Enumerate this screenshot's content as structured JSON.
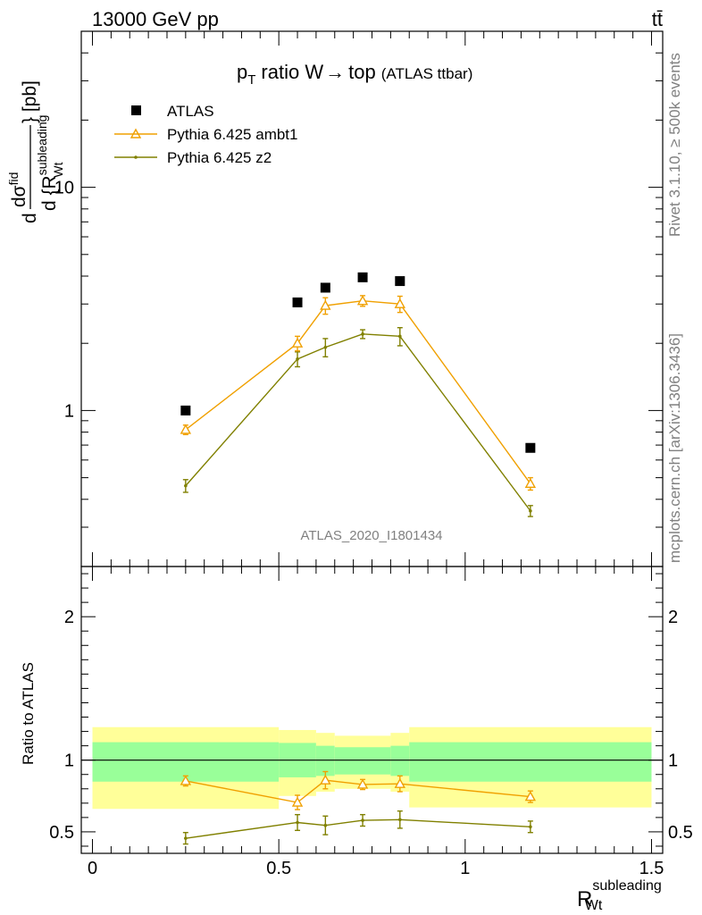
{
  "header": {
    "left": "13000 GeV pp",
    "right": "tt̄"
  },
  "side_labels": {
    "rivet": "Rivet 3.1.10, ≥ 500k events",
    "source": "mcplots.cern.ch [arXiv:1306.3436]"
  },
  "colors": {
    "atlas": "#000000",
    "ambt1": "#f0a000",
    "z2": "#808000",
    "band_inner": "#99ff99",
    "band_outer": "#ffff99"
  },
  "chart_data": [
    {
      "type": "scatter",
      "title": "p_T ratio W→ top",
      "title_main": "p",
      "title_sub": "T",
      "title_rest": "ratio W",
      "title_arrow": "→",
      "title_end": "top",
      "title_note": "(ATLAS ttbar)",
      "watermark": "ATLAS_2020_I1801434",
      "y_scale": "log",
      "ylim": [
        0.2,
        50
      ],
      "xlim": [
        -0.03,
        1.53
      ],
      "y_ticks": [
        1,
        10
      ],
      "y_tick_labels": [
        "1",
        "10"
      ],
      "ylabel_parts": {
        "d": "d",
        "sigma": "dσ",
        "sigma_sup": "fid",
        "denom": "d {R",
        "denom_sup": "subleading",
        "denom_sub": "Wt",
        "unit": "} [pb]"
      },
      "legend_position": "top-left",
      "series": [
        {
          "name": "ATLAS",
          "marker": "square",
          "x": [
            0.25,
            0.55,
            0.625,
            0.725,
            0.825,
            1.175
          ],
          "y": [
            1.0,
            3.05,
            3.55,
            3.95,
            3.8,
            0.68
          ]
        },
        {
          "name": "Pythia 6.425 ambt1",
          "marker": "triangle",
          "x": [
            0.25,
            0.55,
            0.625,
            0.725,
            0.825,
            1.175
          ],
          "y": [
            0.82,
            2.0,
            2.95,
            3.1,
            3.0,
            0.47
          ],
          "err": [
            0.04,
            0.15,
            0.25,
            0.17,
            0.25,
            0.03
          ]
        },
        {
          "name": "Pythia 6.425 z2",
          "marker": "dot",
          "x": [
            0.25,
            0.55,
            0.625,
            0.725,
            0.825,
            1.175
          ],
          "y": [
            0.46,
            1.7,
            1.92,
            2.2,
            2.15,
            0.355
          ],
          "err": [
            0.03,
            0.13,
            0.18,
            0.1,
            0.2,
            0.02
          ]
        }
      ]
    },
    {
      "type": "scatter",
      "ylabel": "Ratio to ATLAS",
      "xlabel_main": "R",
      "xlabel_sup": "subleading",
      "xlabel_sub": "Wt",
      "ylim": [
        0.35,
        2.35
      ],
      "xlim": [
        -0.03,
        1.53
      ],
      "y_ticks": [
        0.5,
        1,
        2
      ],
      "y_tick_labels": [
        "0.5",
        "1",
        "2"
      ],
      "x_ticks": [
        0,
        0.5,
        1,
        1.5
      ],
      "x_tick_labels": [
        "0",
        "0.5",
        "1",
        "1.5"
      ],
      "bins": [
        {
          "lo": 0.0,
          "hi": 0.5,
          "inner": [
            0.85,
            1.125
          ],
          "outer": [
            0.66,
            1.23
          ]
        },
        {
          "lo": 0.5,
          "hi": 0.6,
          "inner": [
            0.88,
            1.12
          ],
          "outer": [
            0.75,
            1.21
          ]
        },
        {
          "lo": 0.6,
          "hi": 0.65,
          "inner": [
            0.89,
            1.1
          ],
          "outer": [
            0.78,
            1.19
          ]
        },
        {
          "lo": 0.65,
          "hi": 0.8,
          "inner": [
            0.9,
            1.09
          ],
          "outer": [
            0.8,
            1.17
          ]
        },
        {
          "lo": 0.8,
          "hi": 0.85,
          "inner": [
            0.89,
            1.1
          ],
          "outer": [
            0.78,
            1.19
          ]
        },
        {
          "lo": 0.85,
          "hi": 1.5,
          "inner": [
            0.85,
            1.125
          ],
          "outer": [
            0.67,
            1.23
          ]
        }
      ],
      "series": [
        {
          "name": "Pythia 6.425 ambt1",
          "x": [
            0.25,
            0.55,
            0.625,
            0.725,
            0.825,
            1.175
          ],
          "y": [
            0.855,
            0.705,
            0.86,
            0.83,
            0.835,
            0.745
          ],
          "err": [
            0.035,
            0.05,
            0.06,
            0.035,
            0.055,
            0.04
          ]
        },
        {
          "name": "Pythia 6.425 z2",
          "x": [
            0.25,
            0.55,
            0.625,
            0.725,
            0.825,
            1.175
          ],
          "y": [
            0.455,
            0.565,
            0.545,
            0.58,
            0.585,
            0.535
          ],
          "err": [
            0.04,
            0.055,
            0.065,
            0.04,
            0.06,
            0.04
          ]
        }
      ]
    }
  ]
}
